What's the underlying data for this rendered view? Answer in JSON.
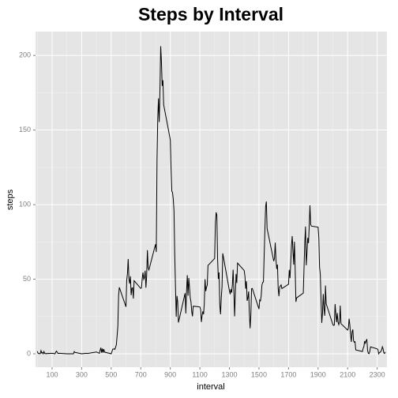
{
  "chart_data": {
    "type": "line",
    "title": "Steps by Interval",
    "x_label": "interval",
    "y_label": "steps",
    "x": [
      0,
      5,
      10,
      15,
      20,
      25,
      30,
      35,
      40,
      45,
      50,
      55,
      100,
      110,
      120,
      125,
      130,
      140,
      150,
      200,
      230,
      245,
      250,
      255,
      300,
      330,
      340,
      400,
      420,
      430,
      435,
      440,
      445,
      450,
      455,
      500,
      510,
      520,
      525,
      535,
      545,
      550,
      555,
      600,
      605,
      610,
      615,
      620,
      625,
      630,
      635,
      640,
      645,
      650,
      655,
      700,
      705,
      710,
      715,
      720,
      725,
      730,
      735,
      740,
      745,
      750,
      755,
      800,
      805,
      810,
      815,
      820,
      825,
      830,
      835,
      840,
      845,
      850,
      855,
      900,
      905,
      910,
      915,
      920,
      925,
      930,
      935,
      940,
      945,
      950,
      955,
      1000,
      1005,
      1010,
      1015,
      1020,
      1025,
      1030,
      1035,
      1040,
      1045,
      1050,
      1055,
      1100,
      1105,
      1110,
      1115,
      1120,
      1125,
      1130,
      1135,
      1140,
      1145,
      1150,
      1155,
      1200,
      1205,
      1210,
      1215,
      1220,
      1225,
      1230,
      1235,
      1240,
      1245,
      1250,
      1255,
      1300,
      1305,
      1310,
      1315,
      1320,
      1325,
      1330,
      1335,
      1340,
      1345,
      1350,
      1355,
      1400,
      1405,
      1410,
      1415,
      1420,
      1425,
      1430,
      1435,
      1440,
      1445,
      1450,
      1455,
      1500,
      1505,
      1510,
      1515,
      1520,
      1525,
      1530,
      1535,
      1540,
      1545,
      1550,
      1555,
      1600,
      1605,
      1610,
      1615,
      1620,
      1625,
      1630,
      1635,
      1640,
      1645,
      1650,
      1655,
      1700,
      1705,
      1710,
      1715,
      1720,
      1725,
      1730,
      1735,
      1740,
      1745,
      1750,
      1755,
      1800,
      1805,
      1810,
      1815,
      1820,
      1825,
      1830,
      1835,
      1840,
      1845,
      1850,
      1855,
      1900,
      1905,
      1910,
      1915,
      1920,
      1925,
      1930,
      1935,
      1940,
      1945,
      1950,
      1955,
      2000,
      2005,
      2010,
      2015,
      2020,
      2025,
      2030,
      2035,
      2040,
      2045,
      2050,
      2055,
      2100,
      2105,
      2110,
      2115,
      2120,
      2125,
      2130,
      2135,
      2140,
      2145,
      2150,
      2155,
      2200,
      2205,
      2210,
      2215,
      2220,
      2225,
      2230,
      2235,
      2240,
      2245,
      2250,
      2255,
      2300,
      2305,
      2310,
      2315,
      2320,
      2325,
      2330,
      2335,
      2340,
      2345,
      2350,
      2355
    ],
    "values": [
      1.7,
      0.3,
      0.1,
      0.2,
      0.1,
      2.1,
      0.5,
      0.9,
      0,
      1.5,
      0.3,
      0.1,
      0.3,
      0.2,
      0,
      1.1,
      1.8,
      0.2,
      0.3,
      0,
      0,
      0,
      1.5,
      0.9,
      0,
      0.3,
      0.2,
      1.2,
      0.3,
      4.1,
      0.7,
      3.5,
      0.8,
      3.1,
      1.1,
      0,
      3,
      3.3,
      3,
      6,
      18.3,
      39,
      44.5,
      31.5,
      49.3,
      53.8,
      63.5,
      50,
      47,
      52,
      39.3,
      44,
      44.2,
      37,
      49,
      43.8,
      44.4,
      50.5,
      54.5,
      49.9,
      51,
      55.7,
      44.3,
      52.3,
      69.5,
      57.8,
      56.2,
      73.4,
      68.2,
      129.4,
      157.5,
      171.2,
      155.4,
      177.3,
      206.2,
      195.9,
      179.6,
      183.4,
      167,
      143.5,
      124,
      109.1,
      108.1,
      103.7,
      95.9,
      66.2,
      45.2,
      24.8,
      38.8,
      35,
      21,
      40.6,
      27,
      42.4,
      52.7,
      38.9,
      50.8,
      44.3,
      37.4,
      34.7,
      28.3,
      25.1,
      31.9,
      31.4,
      29.7,
      21.3,
      25.5,
      28.4,
      26.5,
      33.4,
      50,
      42,
      44.6,
      46,
      59.2,
      63.9,
      87.7,
      94.8,
      92.8,
      63.4,
      50.2,
      54.5,
      32.4,
      26.5,
      37.7,
      45,
      67.3,
      42.3,
      39.9,
      43.3,
      41,
      46.2,
      56.4,
      42.8,
      25.1,
      40,
      53.5,
      47.4,
      60.8,
      55.8,
      52,
      43.6,
      48.7,
      35.5,
      37.5,
      41.8,
      27.5,
      17.1,
      26.1,
      43.6,
      43.8,
      30,
      36.1,
      35.5,
      38.8,
      46,
      47.8,
      48.1,
      65.3,
      82.9,
      98.7,
      102.1,
      84,
      62.1,
      64.1,
      74.5,
      63.2,
      56.9,
      59.8,
      43.9,
      38.6,
      44.7,
      45.5,
      46.2,
      43.7,
      46.6,
      56.3,
      50.7,
      61.2,
      72.7,
      78.9,
      68.9,
      59.7,
      75.1,
      56.5,
      34.8,
      37.5,
      40.7,
      58,
      74.7,
      85.3,
      59.3,
      67.8,
      77.7,
      74.2,
      85.3,
      99.5,
      86.6,
      85.6,
      84.9,
      77.8,
      58,
      53.4,
      36.3,
      20.7,
      27.4,
      40,
      30.2,
      25.5,
      45.7,
      33.5,
      19.6,
      19,
      19.3,
      33.3,
      26.8,
      21.2,
      27.3,
      21.3,
      19.5,
      21.3,
      32.3,
      20.2,
      15.9,
      17.2,
      23.5,
      19.2,
      12.5,
      8,
      14.7,
      16.3,
      8.7,
      7.8,
      8.1,
      2.6,
      1.5,
      3.7,
      4.8,
      8.5,
      7.1,
      8.7,
      9.8,
      2.2,
      0.3,
      0.1,
      1.6,
      4.6,
      3.3,
      2.8,
      0,
      0.8,
      1,
      1.6,
      2.6,
      4.7,
      3.3,
      0.6,
      0.2,
      1.1
    ],
    "color": "#000000",
    "xlim": [
      -12,
      2366
    ],
    "xticks": [
      100,
      300,
      500,
      700,
      900,
      1100,
      1300,
      1500,
      1700,
      1900,
      2100,
      2300
    ],
    "ylim": [
      -9,
      216
    ],
    "yticks": [
      0,
      50,
      100,
      150,
      200
    ],
    "grid": true
  }
}
